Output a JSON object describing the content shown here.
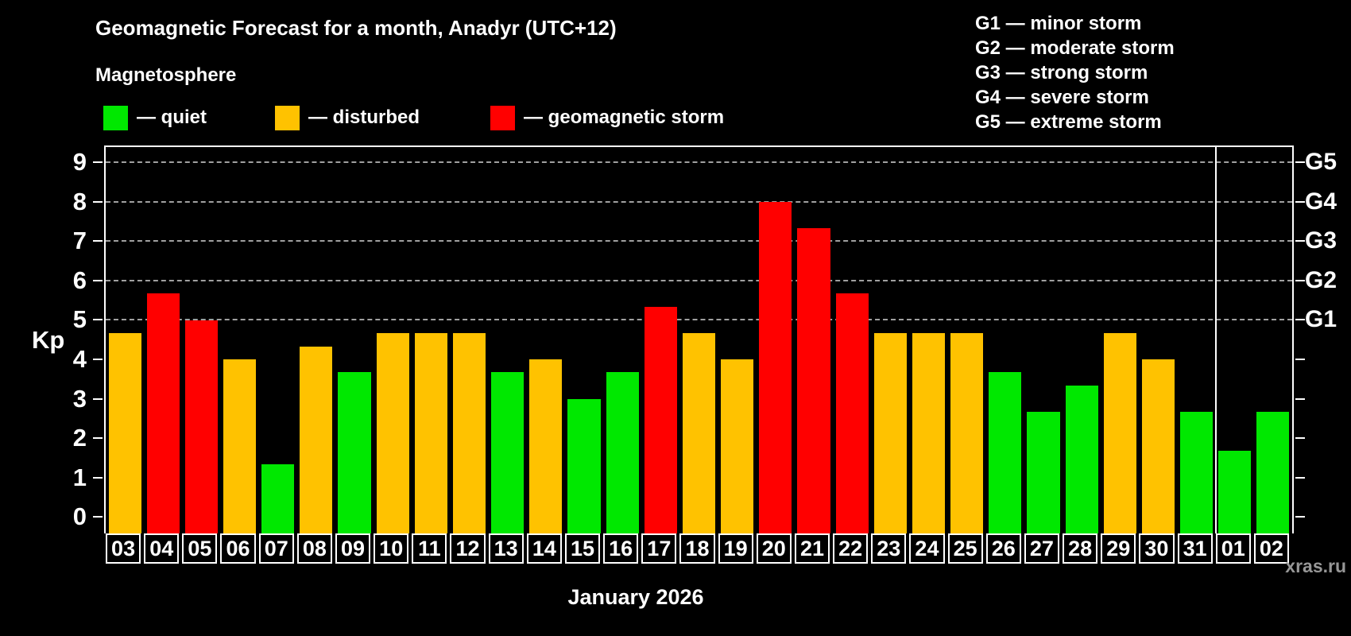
{
  "page": {
    "background": "#000000",
    "text_color": "#ffffff"
  },
  "header": {
    "title": "Geomagnetic Forecast for a month, Anadyr (UTC+12)",
    "subtitle": "Magnetosphere"
  },
  "legend": {
    "items": [
      {
        "status": "quiet",
        "label": "— quiet",
        "color": "#00E800"
      },
      {
        "status": "disturbed",
        "label": "— disturbed",
        "color": "#FFC200"
      },
      {
        "status": "storm",
        "label": "— geomagnetic storm",
        "color": "#FF0000"
      }
    ]
  },
  "gscale_legend": {
    "items": [
      "G1 — minor storm",
      "G2 — moderate storm",
      "G3 — strong storm",
      "G4 — severe storm",
      "G5 — extreme storm"
    ]
  },
  "chart_data": {
    "type": "bar",
    "title": "Geomagnetic Forecast for a month, Anadyr (UTC+12)",
    "ylabel": "Kp",
    "xlabel": "January 2026",
    "ylim": [
      0,
      9
    ],
    "yticks": [
      0,
      1,
      2,
      3,
      4,
      5,
      6,
      7,
      8,
      9
    ],
    "gridlines_at": [
      5,
      6,
      7,
      8,
      9
    ],
    "grid_style": "dashed",
    "right_axis_labels": [
      {
        "value": 5,
        "label": "G1"
      },
      {
        "value": 6,
        "label": "G2"
      },
      {
        "value": 7,
        "label": "G3"
      },
      {
        "value": 8,
        "label": "G4"
      },
      {
        "value": 9,
        "label": "G5"
      }
    ],
    "categories": [
      "03",
      "04",
      "05",
      "06",
      "07",
      "08",
      "09",
      "10",
      "11",
      "12",
      "13",
      "14",
      "15",
      "16",
      "17",
      "18",
      "19",
      "20",
      "21",
      "22",
      "23",
      "24",
      "25",
      "26",
      "27",
      "28",
      "29",
      "30",
      "31",
      "01",
      "02"
    ],
    "values": [
      4.67,
      5.67,
      5.0,
      4.0,
      1.33,
      4.33,
      3.67,
      4.67,
      4.67,
      4.67,
      3.67,
      4.0,
      3.0,
      3.67,
      5.33,
      4.67,
      4.0,
      8.0,
      7.33,
      5.67,
      4.67,
      4.67,
      4.67,
      3.67,
      2.67,
      3.33,
      4.67,
      4.0,
      2.67,
      1.67,
      2.67
    ],
    "statuses": [
      "disturbed",
      "storm",
      "storm",
      "disturbed",
      "quiet",
      "disturbed",
      "quiet",
      "disturbed",
      "disturbed",
      "disturbed",
      "quiet",
      "disturbed",
      "quiet",
      "quiet",
      "storm",
      "disturbed",
      "disturbed",
      "storm",
      "storm",
      "storm",
      "disturbed",
      "disturbed",
      "disturbed",
      "quiet",
      "quiet",
      "quiet",
      "disturbed",
      "disturbed",
      "quiet",
      "quiet",
      "quiet"
    ],
    "month_separator_after_index": 28,
    "legend_position": "top"
  },
  "footer": {
    "caption": "January 2026",
    "watermark": "xras.ru"
  }
}
